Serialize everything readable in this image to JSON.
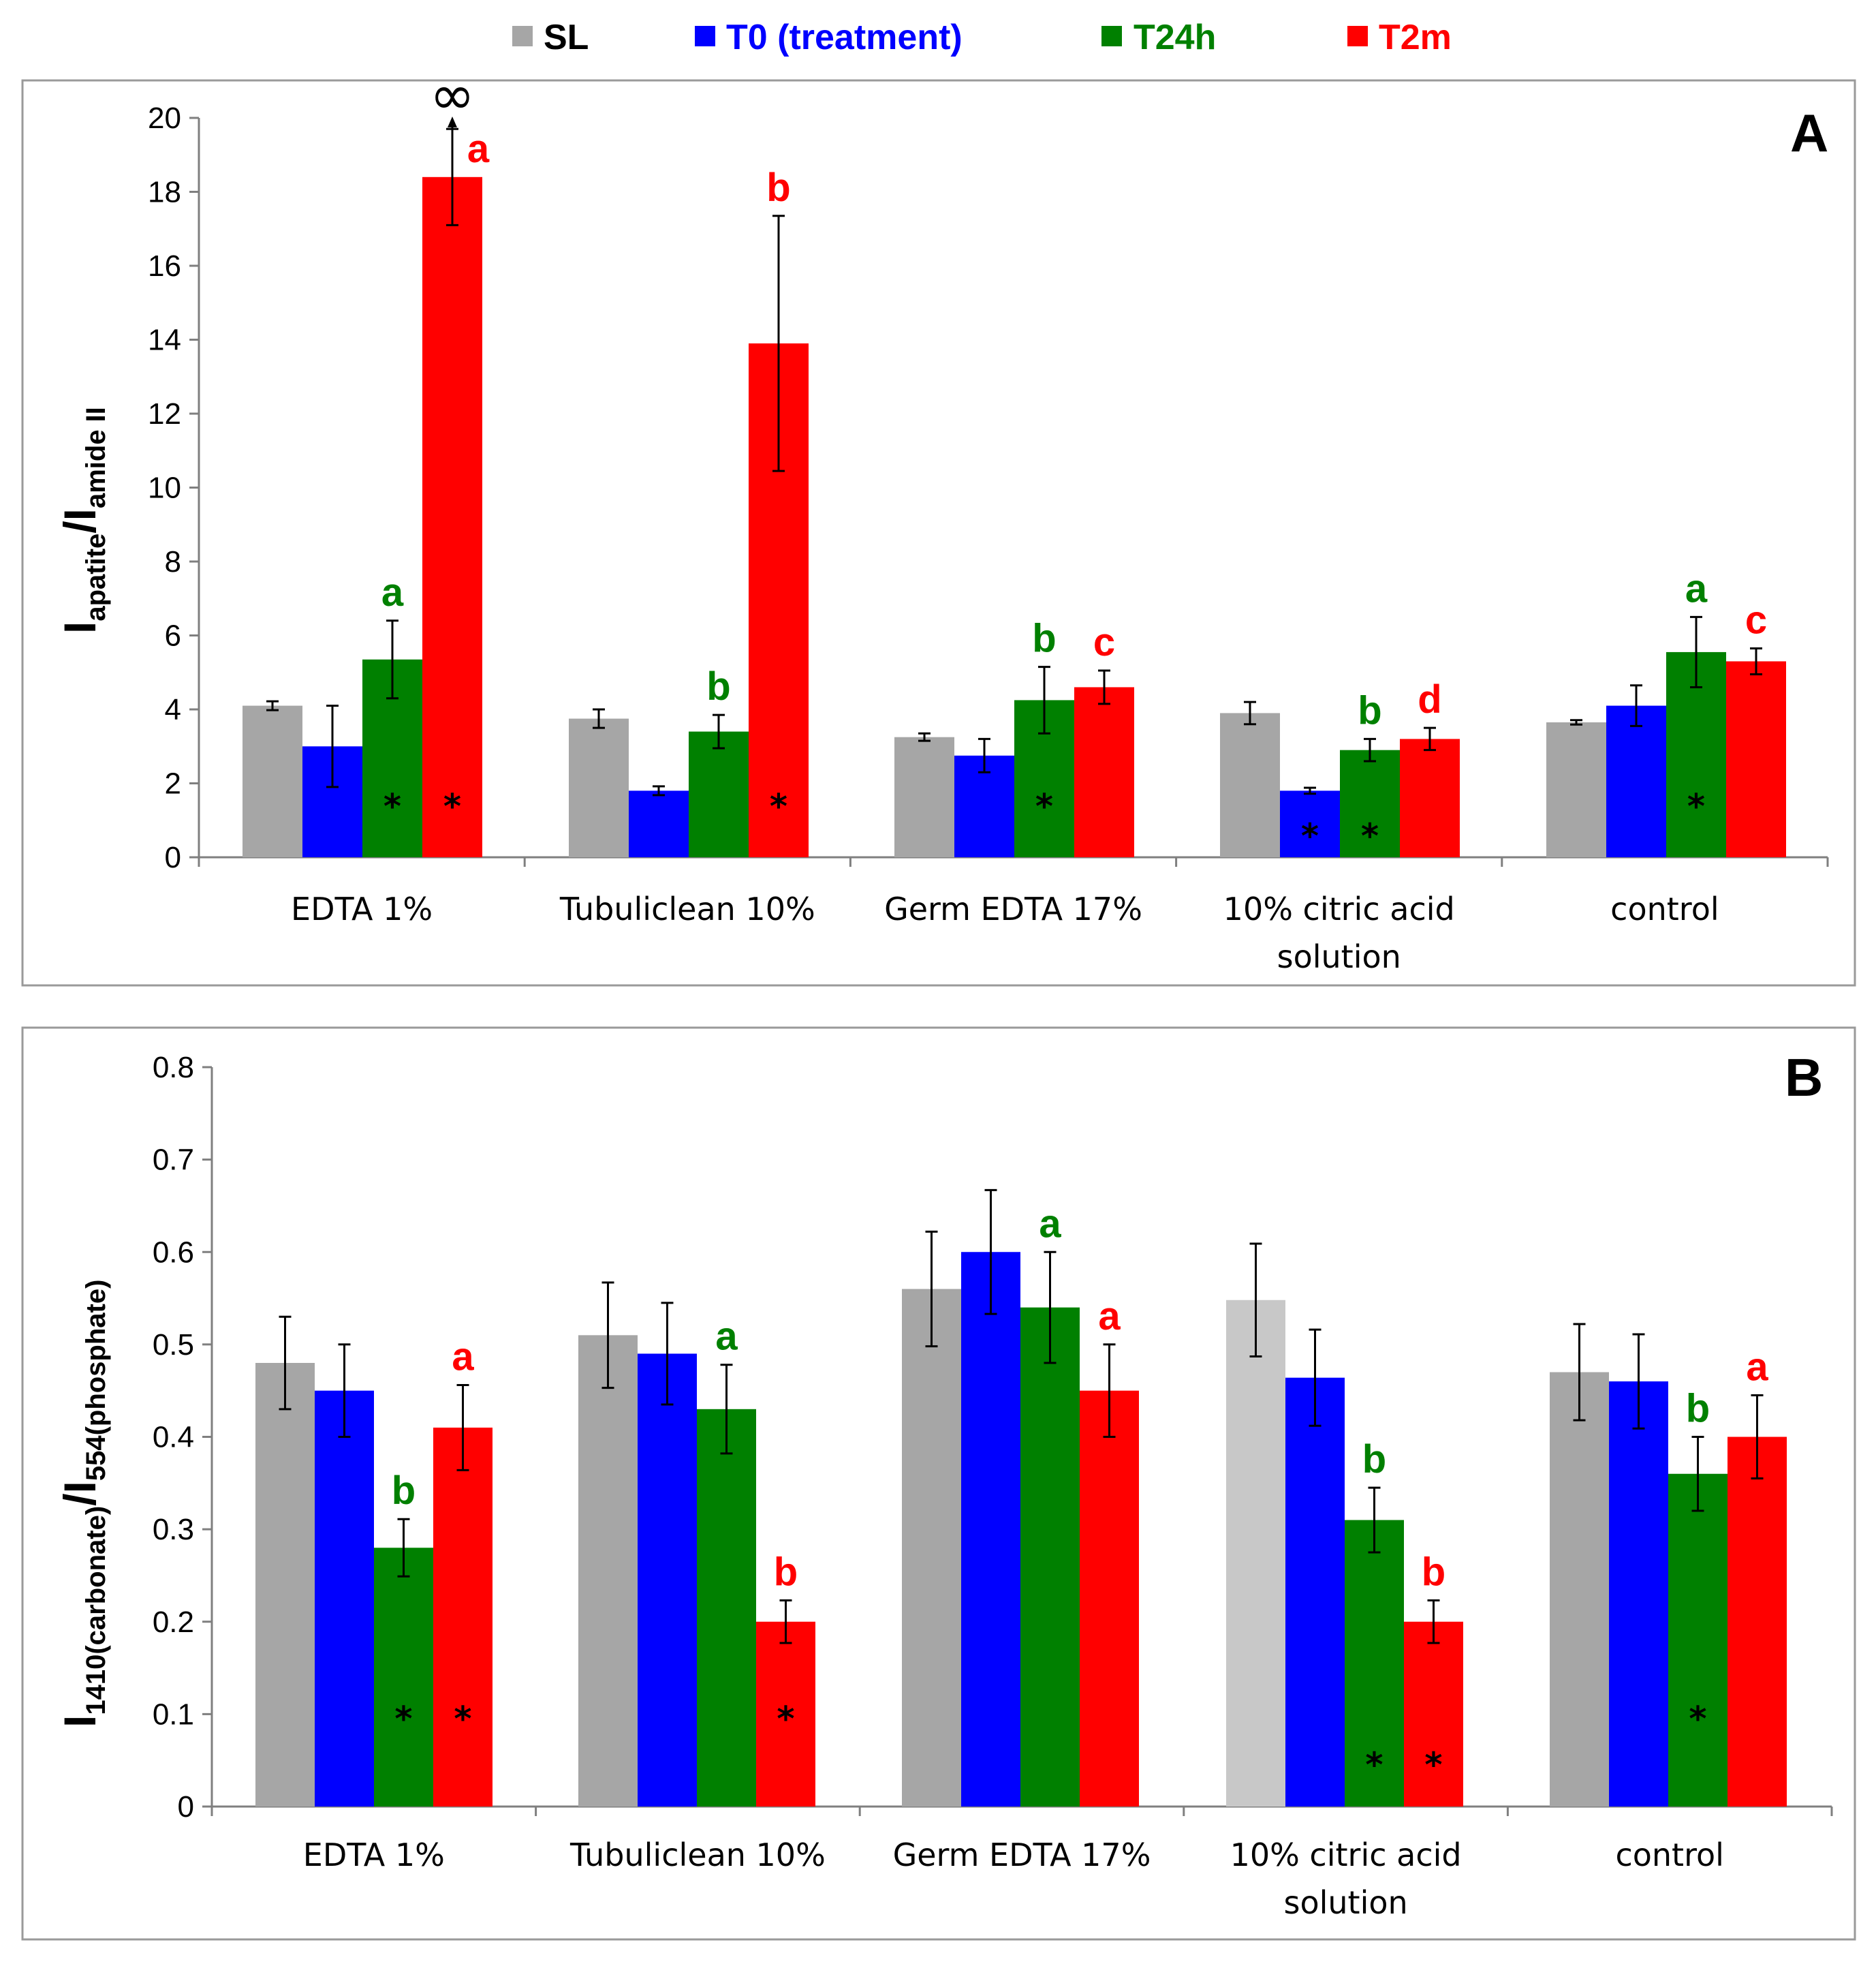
{
  "legend": [
    {
      "label": "SL",
      "color": "#a6a6a6",
      "text_color": "#000000"
    },
    {
      "label": "T0 (treatment)",
      "color": "#0000ff",
      "text_color": "#0000ff"
    },
    {
      "label": "T24h",
      "color": "#008000",
      "text_color": "#008000"
    },
    {
      "label": "T2m",
      "color": "#ff0000",
      "text_color": "#ff0000"
    }
  ],
  "chart_data": [
    {
      "type": "bar",
      "panel": "A",
      "ylabel_main": "I",
      "ylabel_sub1": "apatite",
      "ylabel_mid": "/I",
      "ylabel_sub2": "amide II",
      "ylim": [
        0,
        20
      ],
      "yticks": [
        "0",
        "2",
        "4",
        "6",
        "8",
        "10",
        "12",
        "14",
        "16",
        "18",
        "20"
      ],
      "categories": [
        [
          "EDTA 1%"
        ],
        [
          "Tubuliclean 10%"
        ],
        [
          "Germ EDTA 17%"
        ],
        [
          "10% citric acid",
          "solution"
        ],
        [
          "control"
        ]
      ],
      "series": [
        {
          "name": "SL",
          "values": [
            4.1,
            3.75,
            3.25,
            3.9,
            3.65
          ],
          "errors": [
            0.12,
            0.25,
            0.1,
            0.3,
            0.06
          ]
        },
        {
          "name": "T0 (treatment)",
          "values": [
            3.0,
            1.8,
            2.75,
            1.8,
            4.1
          ],
          "errors": [
            1.1,
            0.12,
            0.45,
            0.08,
            0.55
          ]
        },
        {
          "name": "T24h",
          "values": [
            5.35,
            3.4,
            4.25,
            2.9,
            5.55
          ],
          "errors": [
            1.05,
            0.45,
            0.9,
            0.3,
            0.95
          ]
        },
        {
          "name": "T2m",
          "values": [
            18.4,
            13.9,
            4.6,
            3.2,
            5.3
          ],
          "errors": [
            1.3,
            3.45,
            0.45,
            0.3,
            0.35
          ]
        }
      ],
      "letters": [
        {
          "series": 2,
          "cat": 0,
          "text": "a"
        },
        {
          "series": 3,
          "cat": 0,
          "text": "a"
        },
        {
          "series": 2,
          "cat": 1,
          "text": "b"
        },
        {
          "series": 3,
          "cat": 1,
          "text": "b"
        },
        {
          "series": 2,
          "cat": 2,
          "text": "b"
        },
        {
          "series": 3,
          "cat": 2,
          "text": "c"
        },
        {
          "series": 2,
          "cat": 3,
          "text": "b"
        },
        {
          "series": 3,
          "cat": 3,
          "text": "d"
        },
        {
          "series": 2,
          "cat": 4,
          "text": "a"
        },
        {
          "series": 3,
          "cat": 4,
          "text": "c"
        }
      ],
      "stars": [
        {
          "series": 2,
          "cat": 0,
          "value": 1.5
        },
        {
          "series": 3,
          "cat": 0,
          "value": 1.5
        },
        {
          "series": 3,
          "cat": 1,
          "value": 1.5
        },
        {
          "series": 2,
          "cat": 2,
          "value": 1.5
        },
        {
          "series": 1,
          "cat": 3,
          "value": 0.7
        },
        {
          "series": 2,
          "cat": 3,
          "value": 0.7
        },
        {
          "series": 2,
          "cat": 4,
          "value": 1.5
        }
      ],
      "infinity": {
        "series": 3,
        "cat": 0,
        "symbol": "∞"
      },
      "annotation": "A"
    },
    {
      "type": "bar",
      "panel": "B",
      "ylabel_main": "I",
      "ylabel_sub1": "1410(carbonate)",
      "ylabel_mid": "/I",
      "ylabel_sub2": "554(phosphate)",
      "ylim": [
        0,
        0.8
      ],
      "yticks": [
        "0",
        "0.1",
        "0.2",
        "0.3",
        "0.4",
        "0.5",
        "0.6",
        "0.7",
        "0.8"
      ],
      "categories": [
        [
          "EDTA 1%"
        ],
        [
          "Tubuliclean 10%"
        ],
        [
          "Germ EDTA 17%"
        ],
        [
          "10% citric acid",
          "solution"
        ],
        [
          "control"
        ]
      ],
      "series": [
        {
          "name": "SL",
          "values": [
            0.48,
            0.51,
            0.56,
            0.548,
            0.47
          ],
          "errors": [
            0.05,
            0.057,
            0.062,
            0.061,
            0.052
          ]
        },
        {
          "name": "T0 (treatment)",
          "values": [
            0.45,
            0.49,
            0.6,
            0.464,
            0.46
          ],
          "errors": [
            0.05,
            0.055,
            0.067,
            0.052,
            0.051
          ]
        },
        {
          "name": "T24h",
          "values": [
            0.28,
            0.43,
            0.54,
            0.31,
            0.36
          ],
          "errors": [
            0.031,
            0.048,
            0.06,
            0.035,
            0.04
          ]
        },
        {
          "name": "T2m",
          "values": [
            0.41,
            0.2,
            0.45,
            0.2,
            0.4
          ],
          "errors": [
            0.046,
            0.023,
            0.05,
            0.023,
            0.045
          ]
        }
      ],
      "letters": [
        {
          "series": 2,
          "cat": 0,
          "text": "b"
        },
        {
          "series": 3,
          "cat": 0,
          "text": "a"
        },
        {
          "series": 2,
          "cat": 1,
          "text": "a"
        },
        {
          "series": 3,
          "cat": 1,
          "text": "b"
        },
        {
          "series": 2,
          "cat": 2,
          "text": "a"
        },
        {
          "series": 3,
          "cat": 2,
          "text": "a"
        },
        {
          "series": 2,
          "cat": 3,
          "text": "b"
        },
        {
          "series": 3,
          "cat": 3,
          "text": "b"
        },
        {
          "series": 2,
          "cat": 4,
          "text": "b"
        },
        {
          "series": 3,
          "cat": 4,
          "text": "a"
        }
      ],
      "stars": [
        {
          "series": 2,
          "cat": 0,
          "value": 0.1
        },
        {
          "series": 3,
          "cat": 0,
          "value": 0.1
        },
        {
          "series": 3,
          "cat": 1,
          "value": 0.1
        },
        {
          "series": 2,
          "cat": 3,
          "value": 0.05
        },
        {
          "series": 3,
          "cat": 3,
          "value": 0.05
        },
        {
          "series": 2,
          "cat": 4,
          "value": 0.1
        }
      ],
      "annotation": "B"
    }
  ]
}
